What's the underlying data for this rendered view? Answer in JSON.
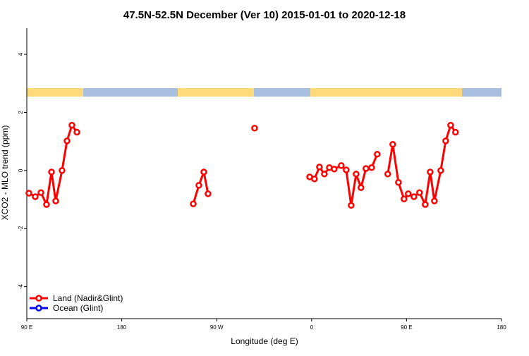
{
  "chart_data": {
    "type": "line",
    "title": "47.5N-52.5N December (Ver 10)   2015-01-01 to 2020-12-18",
    "x_label": "Longitude (deg E)",
    "y_label": "XCO2 - MLO trend (ppm)",
    "xlim": [
      90,
      540
    ],
    "ylim": [
      -5.1,
      4.9
    ],
    "xticks": [
      {
        "value": 90,
        "label": "90 E"
      },
      180,
      {
        "value": 270,
        "label": "90 W"
      },
      {
        "value": 360,
        "label": "0"
      },
      {
        "value": 450,
        "label": "90 E"
      },
      {
        "value": 540,
        "label": "180"
      }
    ],
    "yticks": [
      -4,
      -2,
      0,
      2,
      4
    ],
    "legend": "bottom-left",
    "series": [
      {
        "name": "Land (Nadir&Glint)",
        "color": "#ff0000",
        "x": [
          92,
          98,
          103.4,
          108.7,
          113.4,
          117.4,
          123.4,
          128.1,
          132.8,
          137.5,
          190,
          247.8,
          253.1,
          257.8,
          261.8,
          280,
          305.9,
          330,
          358.1,
          362.7,
          367.4,
          372.1,
          376.8,
          381.4,
          388.1,
          392.8,
          397.5,
          402.2,
          406.8,
          411.5,
          416.9,
          422.2,
          427,
          432.2,
          436.9,
          442.3,
          447.6,
          451.6,
          457,
          462.3,
          467.7,
          472.4,
          476.4,
          482.4,
          487.1,
          491.8,
          496.4
        ],
        "values": [
          -0.78,
          -0.9,
          -0.76,
          -1.17,
          -0.05,
          -1.05,
          0.0,
          1.02,
          1.56,
          1.32,
          null,
          -1.15,
          -0.51,
          -0.05,
          -0.8,
          null,
          1.46,
          null,
          -0.22,
          -0.29,
          0.12,
          -0.12,
          0.1,
          0.05,
          0.17,
          0.02,
          -1.2,
          -0.12,
          -0.59,
          0.07,
          0.1,
          0.56,
          null,
          -0.12,
          0.9,
          -0.41,
          -0.98,
          -0.8,
          -0.9,
          -0.76,
          -1.17,
          -0.05,
          -1.05,
          0.0,
          1.02,
          1.56,
          1.32
        ]
      },
      {
        "name": "Ocean (Glint)",
        "color": "#0000ff",
        "x": [],
        "values": []
      }
    ]
  }
}
